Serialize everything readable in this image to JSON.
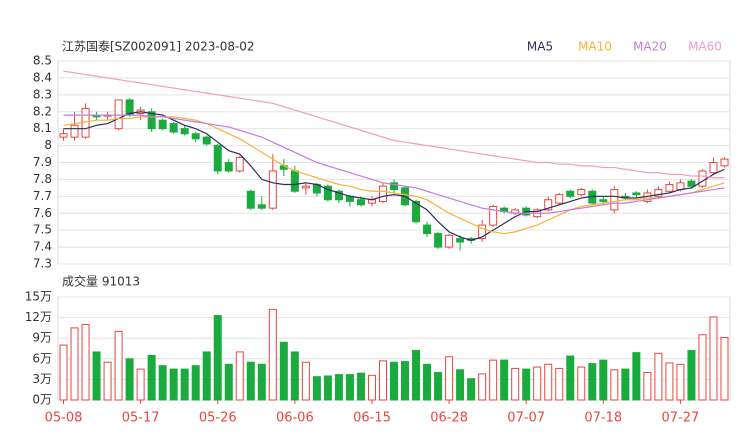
{
  "chart_data": [
    {
      "type": "candlestick",
      "title": "江苏国泰[SZ002091] 2023-08-02",
      "open": [
        8.05,
        8.05,
        8.05,
        8.18,
        8.18,
        8.1,
        8.27,
        8.19,
        8.2,
        8.15,
        8.13,
        8.1,
        8.07,
        8.05,
        8.0,
        7.9,
        7.85,
        7.73,
        7.65,
        7.63,
        7.88,
        7.85,
        7.75,
        7.77,
        7.76,
        7.73,
        7.7,
        7.68,
        7.66,
        7.67,
        7.78,
        7.75,
        7.67,
        7.53,
        7.48,
        7.4,
        7.45,
        7.45,
        7.45,
        7.53,
        7.63,
        7.6,
        7.63,
        7.58,
        7.62,
        7.66,
        7.73,
        7.71,
        7.73,
        7.68,
        7.62,
        7.7,
        7.72,
        7.67,
        7.7,
        7.73,
        7.74,
        7.79,
        7.76,
        7.84,
        7.88
      ],
      "high": [
        8.1,
        8.2,
        8.25,
        8.2,
        8.2,
        8.27,
        8.28,
        8.23,
        8.22,
        8.16,
        8.14,
        8.12,
        8.08,
        8.06,
        8.01,
        7.92,
        7.94,
        7.74,
        7.7,
        7.95,
        7.92,
        7.88,
        7.78,
        7.78,
        7.77,
        7.74,
        7.71,
        7.7,
        7.7,
        7.78,
        7.8,
        7.76,
        7.68,
        7.55,
        7.49,
        7.48,
        7.47,
        7.46,
        7.56,
        7.65,
        7.64,
        7.63,
        7.64,
        7.63,
        7.7,
        7.72,
        7.74,
        7.75,
        7.74,
        7.7,
        7.76,
        7.72,
        7.73,
        7.74,
        7.76,
        7.79,
        7.8,
        7.8,
        7.86,
        7.93,
        7.93
      ],
      "low": [
        8.03,
        8.03,
        8.04,
        8.15,
        8.15,
        8.09,
        8.17,
        8.15,
        8.08,
        8.09,
        8.07,
        8.06,
        8.02,
        8.0,
        7.83,
        7.84,
        7.84,
        7.62,
        7.62,
        7.62,
        7.82,
        7.72,
        7.71,
        7.7,
        7.67,
        7.66,
        7.64,
        7.64,
        7.64,
        7.66,
        7.72,
        7.64,
        7.54,
        7.46,
        7.39,
        7.39,
        7.38,
        7.42,
        7.43,
        7.52,
        7.6,
        7.59,
        7.58,
        7.57,
        7.61,
        7.65,
        7.69,
        7.7,
        7.65,
        7.65,
        7.6,
        7.68,
        7.69,
        7.66,
        7.69,
        7.72,
        7.73,
        7.75,
        7.75,
        7.83,
        7.87
      ],
      "close": [
        8.07,
        8.12,
        8.22,
        8.17,
        8.18,
        8.27,
        8.18,
        8.21,
        8.1,
        8.1,
        8.08,
        8.07,
        8.04,
        8.01,
        7.85,
        7.85,
        7.93,
        7.63,
        7.63,
        7.85,
        7.86,
        7.73,
        7.76,
        7.72,
        7.68,
        7.68,
        7.67,
        7.65,
        7.68,
        7.76,
        7.74,
        7.65,
        7.55,
        7.48,
        7.4,
        7.47,
        7.43,
        7.44,
        7.53,
        7.64,
        7.61,
        7.62,
        7.59,
        7.62,
        7.68,
        7.71,
        7.7,
        7.74,
        7.66,
        7.67,
        7.74,
        7.69,
        7.71,
        7.72,
        7.74,
        7.77,
        7.78,
        7.76,
        7.85,
        7.9,
        7.92
      ],
      "up_color": "#e8473f",
      "down_color": "#1aab3e",
      "series": [
        {
          "name": "MA5",
          "color": "#2b2d5b",
          "values": [
            8.1,
            8.1,
            8.1,
            8.12,
            8.13,
            8.16,
            8.19,
            8.2,
            8.19,
            8.18,
            8.15,
            8.12,
            8.1,
            8.07,
            8.02,
            7.97,
            7.95,
            7.88,
            7.8,
            7.78,
            7.77,
            7.77,
            7.78,
            7.77,
            7.74,
            7.72,
            7.7,
            7.69,
            7.68,
            7.7,
            7.71,
            7.7,
            7.66,
            7.62,
            7.55,
            7.49,
            7.46,
            7.44,
            7.46,
            7.5,
            7.54,
            7.58,
            7.61,
            7.61,
            7.63,
            7.65,
            7.67,
            7.69,
            7.7,
            7.7,
            7.7,
            7.69,
            7.69,
            7.7,
            7.71,
            7.72,
            7.74,
            7.75,
            7.79,
            7.83,
            7.86
          ]
        },
        {
          "name": "MA10",
          "color": "#f5b335",
          "values": [
            8.12,
            8.13,
            8.14,
            8.15,
            8.15,
            8.16,
            8.16,
            8.17,
            8.17,
            8.17,
            8.17,
            8.16,
            8.15,
            8.13,
            8.1,
            8.07,
            8.04,
            8.0,
            7.96,
            7.92,
            7.88,
            7.85,
            7.83,
            7.81,
            7.79,
            7.77,
            7.76,
            7.74,
            7.73,
            7.73,
            7.72,
            7.71,
            7.7,
            7.68,
            7.64,
            7.6,
            7.57,
            7.54,
            7.51,
            7.49,
            7.48,
            7.49,
            7.51,
            7.53,
            7.56,
            7.59,
            7.62,
            7.64,
            7.65,
            7.66,
            7.67,
            7.68,
            7.68,
            7.69,
            7.69,
            7.7,
            7.71,
            7.72,
            7.74,
            7.76,
            7.78
          ]
        },
        {
          "name": "MA20",
          "color": "#c27ddc",
          "values": [
            8.18,
            8.18,
            8.18,
            8.18,
            8.18,
            8.18,
            8.18,
            8.18,
            8.17,
            8.17,
            8.16,
            8.15,
            8.14,
            8.13,
            8.12,
            8.11,
            8.09,
            8.07,
            8.05,
            8.02,
            7.99,
            7.96,
            7.93,
            7.9,
            7.88,
            7.86,
            7.84,
            7.82,
            7.8,
            7.78,
            7.77,
            7.76,
            7.75,
            7.73,
            7.71,
            7.69,
            7.67,
            7.65,
            7.63,
            7.62,
            7.61,
            7.6,
            7.6,
            7.6,
            7.6,
            7.61,
            7.62,
            7.63,
            7.64,
            7.65,
            7.66,
            7.66,
            7.67,
            7.68,
            7.69,
            7.7,
            7.71,
            7.72,
            7.73,
            7.74,
            7.75
          ]
        },
        {
          "name": "MA60",
          "color": "#f29ac8",
          "values": [
            8.44,
            8.43,
            8.42,
            8.41,
            8.4,
            8.39,
            8.38,
            8.37,
            8.36,
            8.35,
            8.34,
            8.33,
            8.32,
            8.31,
            8.3,
            8.29,
            8.28,
            8.27,
            8.26,
            8.25,
            8.23,
            8.21,
            8.19,
            8.17,
            8.15,
            8.13,
            8.11,
            8.09,
            8.07,
            8.05,
            8.03,
            8.02,
            8.01,
            8.0,
            7.99,
            7.98,
            7.97,
            7.96,
            7.95,
            7.94,
            7.93,
            7.92,
            7.91,
            7.9,
            7.9,
            7.89,
            7.89,
            7.88,
            7.88,
            7.87,
            7.87,
            7.86,
            7.85,
            7.84,
            7.84,
            7.83,
            7.83,
            7.82,
            7.82,
            7.81,
            7.81
          ]
        }
      ],
      "ylim": [
        7.3,
        8.5
      ],
      "yticks": [
        8.5,
        8.4,
        8.3,
        8.2,
        8.1,
        8,
        7.9,
        7.8,
        7.7,
        7.6,
        7.5,
        7.4,
        7.3
      ],
      "grid": true
    },
    {
      "type": "bar",
      "title": "成交量 91013",
      "categories": [
        "05-08",
        null,
        null,
        null,
        null,
        null,
        null,
        "05-17",
        null,
        null,
        null,
        null,
        null,
        null,
        "05-26",
        null,
        null,
        null,
        null,
        null,
        null,
        "06-06",
        null,
        null,
        null,
        null,
        null,
        null,
        "06-15",
        null,
        null,
        null,
        null,
        null,
        null,
        "06-28",
        null,
        null,
        null,
        null,
        null,
        null,
        "07-07",
        null,
        null,
        null,
        null,
        null,
        null,
        "07-18",
        null,
        null,
        null,
        null,
        null,
        null,
        "07-27",
        null,
        null,
        null,
        null
      ],
      "values": [
        8.0,
        10.5,
        11.0,
        7.0,
        5.5,
        10.0,
        6.0,
        4.5,
        6.5,
        5.0,
        4.5,
        4.5,
        5.0,
        7.0,
        12.3,
        5.2,
        7.0,
        5.5,
        5.2,
        13.2,
        8.4,
        7.0,
        5.5,
        3.4,
        3.5,
        3.7,
        3.7,
        3.9,
        3.6,
        5.7,
        5.5,
        5.6,
        7.2,
        5.2,
        4.0,
        6.3,
        4.4,
        3.1,
        3.8,
        5.8,
        5.8,
        4.6,
        4.5,
        4.8,
        5.2,
        4.6,
        6.4,
        4.8,
        5.3,
        5.8,
        4.4,
        4.5,
        6.9,
        4.0,
        6.8,
        5.4,
        5.2,
        7.2,
        9.5,
        12.1,
        9.1
      ],
      "ylim": [
        0,
        15
      ],
      "yticks": [
        {
          "value": 15,
          "label": "15万"
        },
        {
          "value": 12,
          "label": "12万"
        },
        {
          "value": 9,
          "label": "9万"
        },
        {
          "value": 6,
          "label": "6万"
        },
        {
          "value": 3,
          "label": "3万"
        },
        {
          "value": 0,
          "label": "0万"
        }
      ],
      "grid": true
    }
  ]
}
